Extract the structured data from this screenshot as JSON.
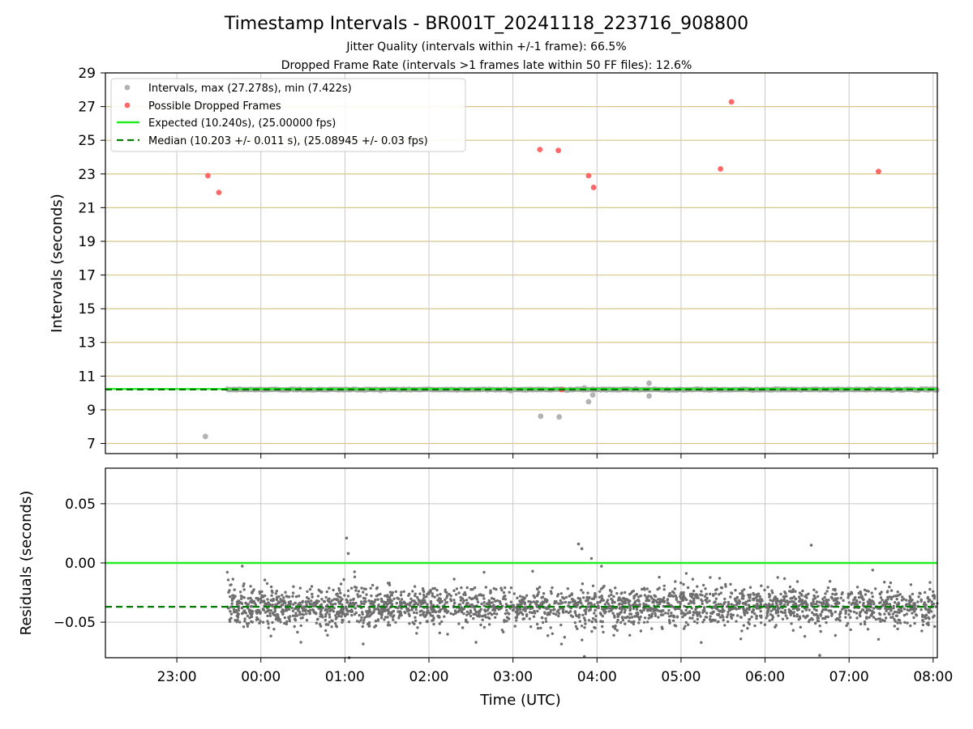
{
  "chart_data": {
    "type": "scatter",
    "title": "Timestamp Intervals - BR001T_20241118_223716_908800",
    "subtitle_lines": [
      "Jitter Quality (intervals within +/-1 frame): 66.5%",
      "Dropped Frame Rate (intervals >1 frames late within 50 FF files): 12.6%"
    ],
    "xlabel": "Time (UTC)",
    "x_ticks": [
      "23:00",
      "00:00",
      "01:00",
      "02:00",
      "03:00",
      "04:00",
      "05:00",
      "06:00",
      "07:00",
      "08:00"
    ],
    "x_range_hours": [
      -1.85,
      8.05
    ],
    "top_panel": {
      "ylabel": "Intervals (seconds)",
      "ylim": [
        6.4,
        29
      ],
      "y_ticks": [
        "7",
        "9",
        "11",
        "13",
        "15",
        "17",
        "19",
        "21",
        "23",
        "25",
        "27",
        "29"
      ],
      "legend": {
        "position": "upper-left",
        "entries": [
          "Intervals, max (27.278s), min (7.422s)",
          "Possible Dropped Frames",
          "Expected (10.240s), (25.00000 fps)",
          "Median (10.203 +/- 0.011 s), (25.08945 +/- 0.03 fps)"
        ]
      },
      "expected_line": 10.24,
      "median_line": 10.203,
      "baseline_interval": 10.203,
      "baseline_x_range_hours": [
        -0.4,
        8.05
      ],
      "outlier_intervals": [
        {
          "x": -0.66,
          "y": 7.42
        },
        {
          "x": 3.33,
          "y": 8.62
        },
        {
          "x": 3.55,
          "y": 8.58
        },
        {
          "x": 3.9,
          "y": 9.48
        },
        {
          "x": 3.95,
          "y": 9.88
        },
        {
          "x": 4.62,
          "y": 10.58
        },
        {
          "x": 4.62,
          "y": 9.82
        },
        {
          "x": 3.85,
          "y": 10.3
        }
      ],
      "dropped_frames": [
        {
          "x": -0.63,
          "y": 22.9
        },
        {
          "x": -0.5,
          "y": 21.9
        },
        {
          "x": 3.32,
          "y": 24.45
        },
        {
          "x": 3.54,
          "y": 24.4
        },
        {
          "x": 3.9,
          "y": 22.9
        },
        {
          "x": 3.96,
          "y": 22.2
        },
        {
          "x": 5.47,
          "y": 23.3
        },
        {
          "x": 5.6,
          "y": 27.28
        },
        {
          "x": 7.35,
          "y": 23.15
        },
        {
          "x": 3.58,
          "y": 10.2
        }
      ]
    },
    "bottom_panel": {
      "ylabel": "Residuals (seconds)",
      "ylim": [
        -0.08,
        0.08
      ],
      "y_ticks": [
        {
          "value": 0.05,
          "label": "0.05"
        },
        {
          "value": 0.0,
          "label": "0.00"
        },
        {
          "value": -0.05,
          "label": "−0.05"
        }
      ],
      "expected_line": 0.0,
      "median_line": -0.037,
      "residual_center": -0.037,
      "residual_spread": 0.008,
      "residual_count": 2600,
      "residual_x_range_hours": [
        -0.4,
        8.05
      ],
      "residual_highlights": [
        {
          "x": 1.02,
          "y": 0.021
        },
        {
          "x": 1.04,
          "y": 0.008
        },
        {
          "x": 3.78,
          "y": 0.016
        },
        {
          "x": 3.82,
          "y": 0.012
        },
        {
          "x": 6.55,
          "y": 0.015
        },
        {
          "x": 1.05,
          "y": -0.08
        },
        {
          "x": 3.85,
          "y": -0.079
        },
        {
          "x": 6.65,
          "y": -0.078
        }
      ]
    },
    "colors": {
      "interval_point": "#a0a0a0",
      "dropped_point": "#ff4d4d",
      "expected_line": "#22ee22",
      "median_line": "#007a00",
      "residual_point": "#6e6e6e",
      "grid_vertical": "#c8c8c8",
      "grid_horizontal": "#d8c787"
    }
  }
}
